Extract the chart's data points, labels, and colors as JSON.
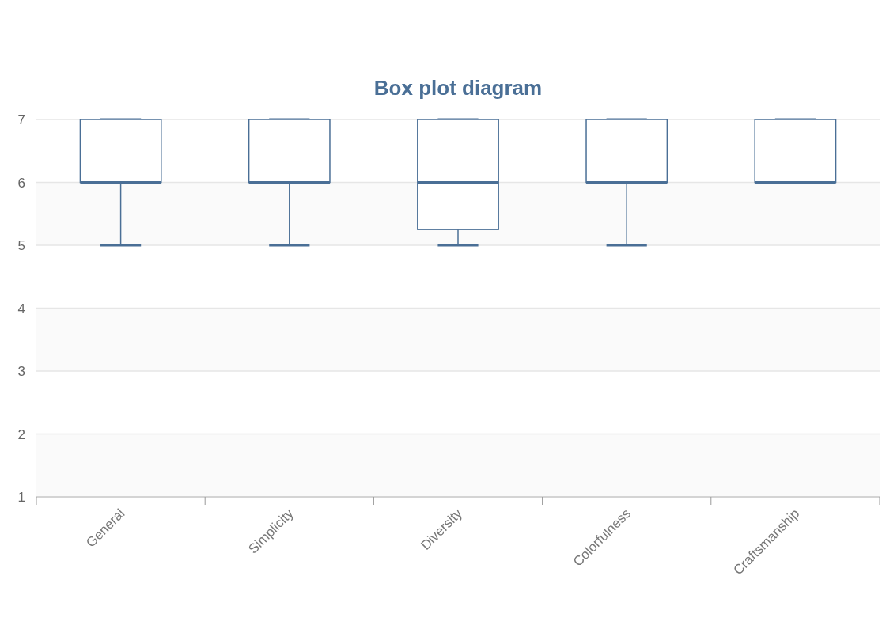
{
  "chart_data": {
    "type": "box",
    "title": "Box plot diagram",
    "categories": [
      "General",
      "Simplicity",
      "Diversity",
      "Colorfulness",
      "Craftsmanship"
    ],
    "series": [
      {
        "color": "#4a6f96",
        "boxes": [
          {
            "low": 5,
            "q1": 6,
            "median": 6,
            "q3": 7,
            "high": 7
          },
          {
            "low": 5,
            "q1": 6,
            "median": 6,
            "q3": 7,
            "high": 7
          },
          {
            "low": 5,
            "q1": 5.25,
            "median": 6,
            "q3": 7,
            "high": 7
          },
          {
            "low": 5,
            "q1": 6,
            "median": 6,
            "q3": 7,
            "high": 7
          },
          {
            "low": 6,
            "q1": 6,
            "median": 6,
            "q3": 7,
            "high": 7
          }
        ]
      }
    ],
    "ylim": [
      1,
      7
    ],
    "yticks": [
      1,
      2,
      3,
      4,
      5,
      6,
      7
    ],
    "grid": true
  }
}
